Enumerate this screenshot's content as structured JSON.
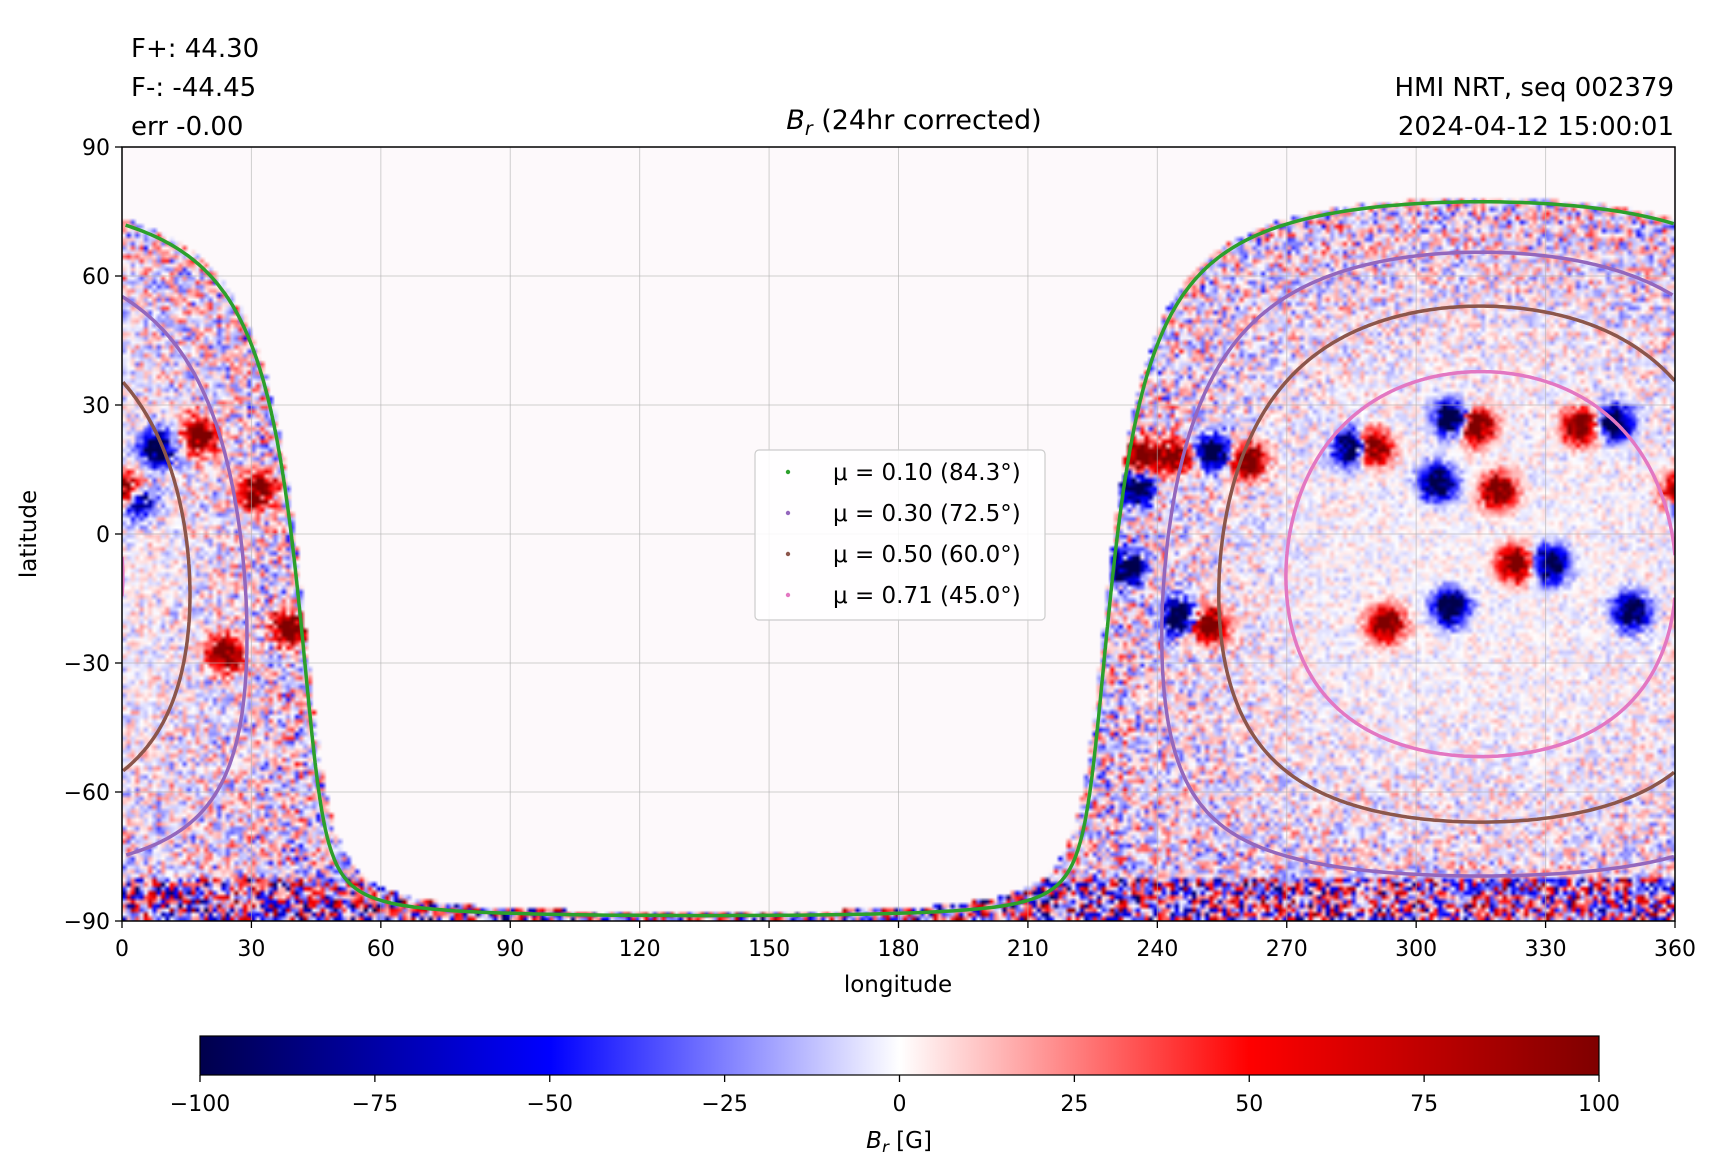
{
  "info_left": [
    "F+: 44.30",
    "F-: -44.45",
    "err -0.00"
  ],
  "info_right": [
    "HMI NRT, seq 002379",
    "2024-04-12 15:00:01"
  ],
  "chart_data": {
    "type": "heatmap",
    "title_symbol": "B",
    "title_sub": "r",
    "title_rest": " (24hr corrected)",
    "xlabel": "longitude",
    "ylabel": "latitude",
    "xlim": [
      0,
      360
    ],
    "ylim": [
      -90,
      90
    ],
    "x_ticks": [
      0,
      30,
      60,
      90,
      120,
      150,
      180,
      210,
      240,
      270,
      300,
      330,
      360
    ],
    "y_ticks": [
      -90,
      -60,
      -30,
      0,
      30,
      60,
      90
    ],
    "y_tick_labels": [
      "−90",
      "−60",
      "−30",
      "0",
      "30",
      "60",
      "90"
    ],
    "grid": true,
    "disk_center_lon": 315,
    "disk_center_lat": -7,
    "disk_extent_lon": [
      229,
      43
    ],
    "series": [
      {
        "name": "μ = 0.10 (84.3°)",
        "mu": 0.1,
        "angle_deg": 84.3,
        "color": "#2ca02c"
      },
      {
        "name": "μ = 0.30 (72.5°)",
        "mu": 0.3,
        "angle_deg": 72.5,
        "color": "#9467bd"
      },
      {
        "name": "μ = 0.50 (60.0°)",
        "mu": 0.5,
        "angle_deg": 60.0,
        "color": "#8c564b"
      },
      {
        "name": "μ = 0.71 (45.0°)",
        "mu": 0.71,
        "angle_deg": 45.0,
        "color": "#e377c2"
      }
    ],
    "legend_placement": "center",
    "colorbar": {
      "range": [
        -100,
        100
      ],
      "ticks": [
        -100,
        -75,
        -50,
        -25,
        0,
        25,
        50,
        75,
        100
      ],
      "tick_labels": [
        "−100",
        "−75",
        "−50",
        "−25",
        "0",
        "25",
        "50",
        "75",
        "100"
      ],
      "label_symbol": "B",
      "label_sub": "r",
      "label_rest": " [G]",
      "colormap": "seismic",
      "stops": [
        "#00004c",
        "#0000ff",
        "#ffffff",
        "#ff0000",
        "#7f0000"
      ]
    },
    "active_regions": [
      {
        "lon": 236,
        "lat": 18,
        "polarity": 1
      },
      {
        "lon": 244,
        "lat": 18,
        "polarity": 1
      },
      {
        "lon": 253,
        "lat": 19,
        "polarity": -1
      },
      {
        "lon": 261,
        "lat": 17,
        "polarity": 1
      },
      {
        "lon": 285,
        "lat": 20,
        "polarity": -1
      },
      {
        "lon": 290,
        "lat": 20,
        "polarity": 1
      },
      {
        "lon": 308,
        "lat": 27,
        "polarity": -1
      },
      {
        "lon": 314,
        "lat": 25,
        "polarity": 1
      },
      {
        "lon": 338,
        "lat": 25,
        "polarity": 1
      },
      {
        "lon": 346,
        "lat": 26,
        "polarity": -1
      },
      {
        "lon": 305,
        "lat": 12,
        "polarity": -1
      },
      {
        "lon": 319,
        "lat": 10,
        "polarity": 1
      },
      {
        "lon": 323,
        "lat": -7,
        "polarity": 1
      },
      {
        "lon": 331,
        "lat": -7,
        "polarity": -1
      },
      {
        "lon": 308,
        "lat": -17,
        "polarity": -1
      },
      {
        "lon": 293,
        "lat": -21,
        "polarity": 1
      },
      {
        "lon": 350,
        "lat": -18,
        "polarity": -1
      },
      {
        "lon": 252,
        "lat": -21,
        "polarity": 1
      },
      {
        "lon": 245,
        "lat": -19,
        "polarity": -1
      },
      {
        "lon": 233,
        "lat": -8,
        "polarity": -1
      },
      {
        "lon": 235,
        "lat": 11,
        "polarity": -1
      },
      {
        "lon": 18,
        "lat": 23,
        "polarity": 1
      },
      {
        "lon": 8,
        "lat": 20,
        "polarity": -1
      },
      {
        "lon": 31,
        "lat": 10,
        "polarity": 1
      },
      {
        "lon": 3,
        "lat": 8,
        "polarity": -1
      },
      {
        "lon": 24,
        "lat": -28,
        "polarity": 1
      },
      {
        "lon": 39,
        "lat": -22,
        "polarity": 1
      },
      {
        "lon": 1,
        "lat": 10,
        "polarity": 1
      }
    ]
  }
}
